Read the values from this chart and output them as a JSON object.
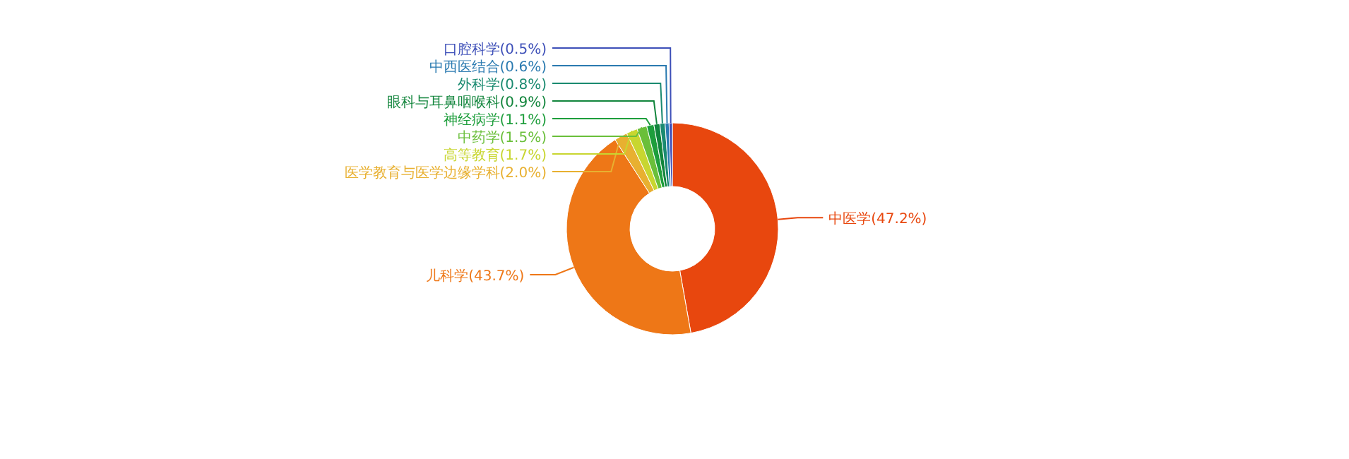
{
  "chart_data": {
    "type": "donut",
    "categories": [
      "中医学",
      "儿科学",
      "医学教育与医学边缘学科",
      "高等教育",
      "中药学",
      "神经病学",
      "眼科与耳鼻咽喉科",
      "外科学",
      "中西医结合",
      "口腔科学"
    ],
    "values": [
      47.2,
      43.7,
      2.0,
      1.7,
      1.5,
      1.1,
      0.9,
      0.8,
      0.6,
      0.5
    ],
    "colors": [
      "#e8470e",
      "#ee7717",
      "#e8b030",
      "#c8d630",
      "#6abf3a",
      "#1e9e3c",
      "#12853c",
      "#1a8a70",
      "#2a7ab0",
      "#3d4fb8"
    ],
    "value_labels": [
      "(47.2%)",
      "(43.7%)",
      "(2.0%)",
      "(1.7%)",
      "(1.5%)",
      "(1.1%)",
      "(0.9%)",
      "(0.8%)",
      "(0.6%)",
      "(0.5%)"
    ]
  }
}
